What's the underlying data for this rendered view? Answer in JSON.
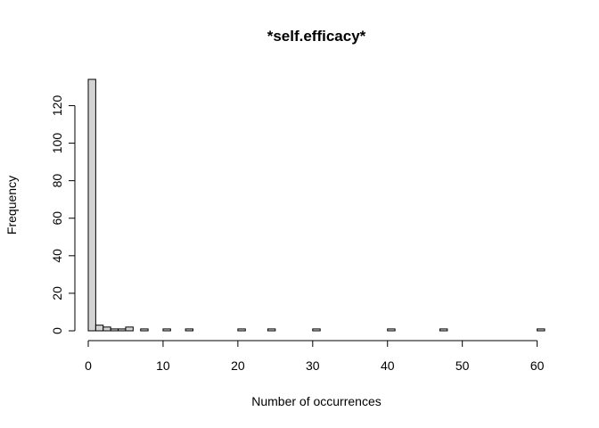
{
  "chart_data": {
    "type": "bar",
    "title": "*self.efficacy*",
    "xlabel": "Number of occurrences",
    "ylabel": "Frequency",
    "xlim": [
      0,
      61
    ],
    "ylim": [
      0,
      134
    ],
    "xticks": [
      0,
      10,
      20,
      30,
      40,
      50,
      60
    ],
    "yticks": [
      0,
      20,
      40,
      60,
      80,
      100,
      120
    ],
    "bin_width": 1,
    "bins": [
      {
        "x0": 0,
        "x1": 1,
        "count": 134
      },
      {
        "x0": 1,
        "x1": 2,
        "count": 3
      },
      {
        "x0": 2,
        "x1": 3,
        "count": 2
      },
      {
        "x0": 3,
        "x1": 4,
        "count": 1
      },
      {
        "x0": 4,
        "x1": 5,
        "count": 1
      },
      {
        "x0": 5,
        "x1": 6,
        "count": 2
      },
      {
        "x0": 7,
        "x1": 8,
        "count": 1
      },
      {
        "x0": 10,
        "x1": 11,
        "count": 1
      },
      {
        "x0": 13,
        "x1": 14,
        "count": 1
      },
      {
        "x0": 20,
        "x1": 21,
        "count": 1
      },
      {
        "x0": 24,
        "x1": 25,
        "count": 1
      },
      {
        "x0": 30,
        "x1": 31,
        "count": 1
      },
      {
        "x0": 40,
        "x1": 41,
        "count": 1
      },
      {
        "x0": 47,
        "x1": 48,
        "count": 1
      },
      {
        "x0": 60,
        "x1": 61,
        "count": 1
      }
    ],
    "grid": false,
    "bar_fill": "#d3d3d3",
    "bar_stroke": "#000000"
  }
}
